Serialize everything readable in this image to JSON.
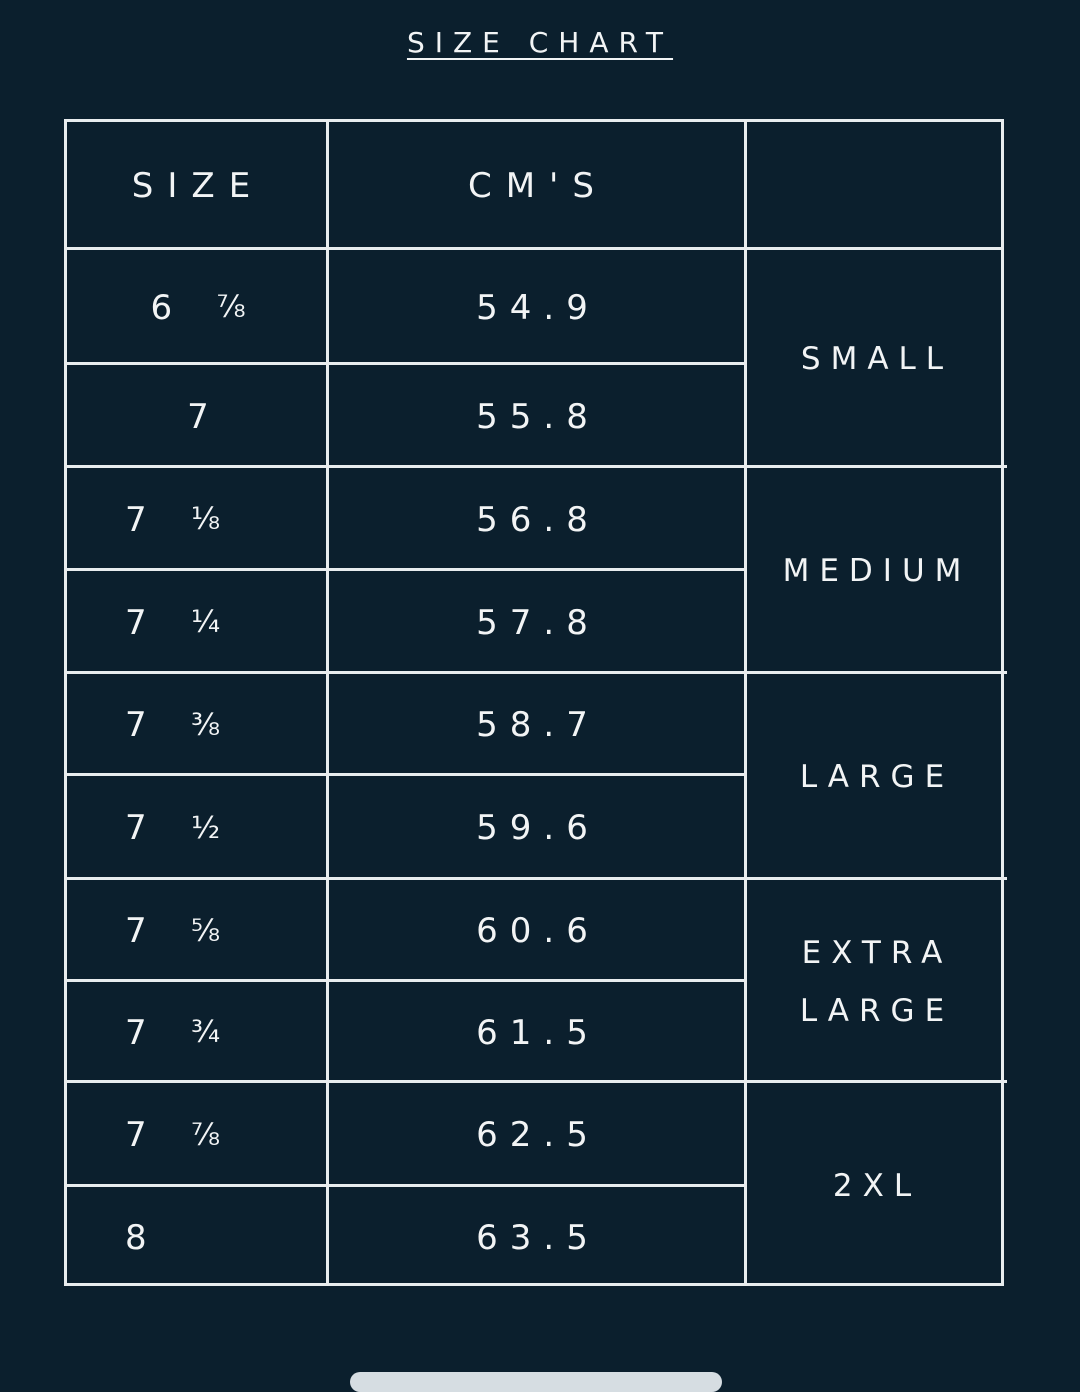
{
  "title": "SIZE CHART",
  "headers": {
    "size": "SIZE",
    "cms": "CM'S",
    "label": ""
  },
  "rows": [
    {
      "whole": "6",
      "fraction": "⅞",
      "cm": "54.9"
    },
    {
      "whole": "7",
      "fraction": "",
      "cm": "55.8"
    },
    {
      "whole": "7",
      "fraction": "⅛",
      "cm": "56.8"
    },
    {
      "whole": "7",
      "fraction": "¼",
      "cm": "57.8"
    },
    {
      "whole": "7",
      "fraction": "⅜",
      "cm": "58.7"
    },
    {
      "whole": "7",
      "fraction": "½",
      "cm": "59.6"
    },
    {
      "whole": "7",
      "fraction": "⅝",
      "cm": "60.6"
    },
    {
      "whole": "7",
      "fraction": "¾",
      "cm": "61.5"
    },
    {
      "whole": "7",
      "fraction": "⅞",
      "cm": "62.5"
    },
    {
      "whole": "8",
      "fraction": "",
      "cm": "63.5"
    }
  ],
  "groups": [
    {
      "lines": [
        "SMALL"
      ]
    },
    {
      "lines": [
        "MEDIUM"
      ]
    },
    {
      "lines": [
        "LARGE"
      ]
    },
    {
      "lines": [
        "EXTRA",
        "LARGE"
      ]
    },
    {
      "lines": [
        "2XL"
      ]
    }
  ],
  "colors": {
    "background": "#0b1f2d",
    "lines": "#e8ecee",
    "text": "#f2f4f5"
  }
}
